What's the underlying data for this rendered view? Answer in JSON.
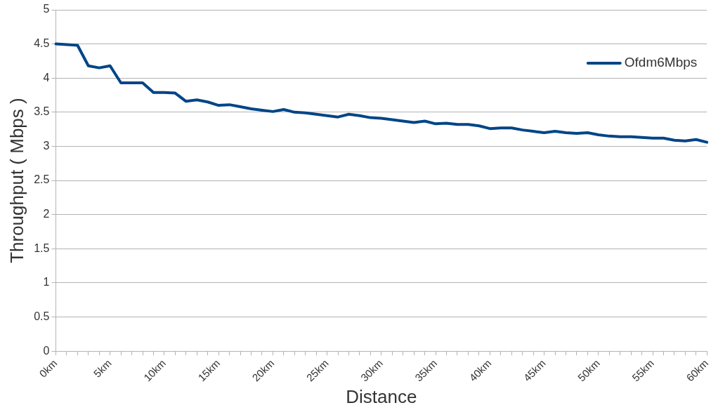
{
  "chart_data": {
    "type": "line",
    "xlabel": "Distance",
    "ylabel": "Throughput ( Mbps )",
    "categories": [
      "0km",
      null,
      null,
      null,
      null,
      "5km",
      null,
      null,
      null,
      null,
      "10km",
      null,
      null,
      null,
      null,
      "15km",
      null,
      null,
      null,
      null,
      "20km",
      null,
      null,
      null,
      null,
      "25km",
      null,
      null,
      null,
      null,
      "30km",
      null,
      null,
      null,
      null,
      "35km",
      null,
      null,
      null,
      null,
      "40km",
      null,
      null,
      null,
      null,
      "45km",
      null,
      null,
      null,
      null,
      "50km",
      null,
      null,
      null,
      null,
      "55km",
      null,
      null,
      null,
      null,
      "60km"
    ],
    "series": [
      {
        "name": "Ofdm6Mbps",
        "color": "#004586",
        "values": [
          4.5,
          4.49,
          4.48,
          4.18,
          4.15,
          4.18,
          3.93,
          3.93,
          3.93,
          3.79,
          3.79,
          3.78,
          3.66,
          3.68,
          3.65,
          3.6,
          3.61,
          3.58,
          3.55,
          3.53,
          3.51,
          3.54,
          3.5,
          3.49,
          3.47,
          3.45,
          3.43,
          3.47,
          3.45,
          3.42,
          3.41,
          3.39,
          3.37,
          3.35,
          3.37,
          3.33,
          3.34,
          3.32,
          3.32,
          3.3,
          3.26,
          3.27,
          3.27,
          3.24,
          3.22,
          3.2,
          3.22,
          3.2,
          3.19,
          3.2,
          3.17,
          3.15,
          3.14,
          3.14,
          3.13,
          3.12,
          3.12,
          3.09,
          3.08,
          3.1,
          3.06
        ]
      }
    ],
    "ylim": [
      0,
      5
    ],
    "yticks": [
      0,
      0.5,
      1,
      1.5,
      2,
      2.5,
      3,
      3.5,
      4,
      4.5,
      5
    ],
    "grid": "y",
    "legend": "top right",
    "marker": "none",
    "line_style": "solid"
  }
}
